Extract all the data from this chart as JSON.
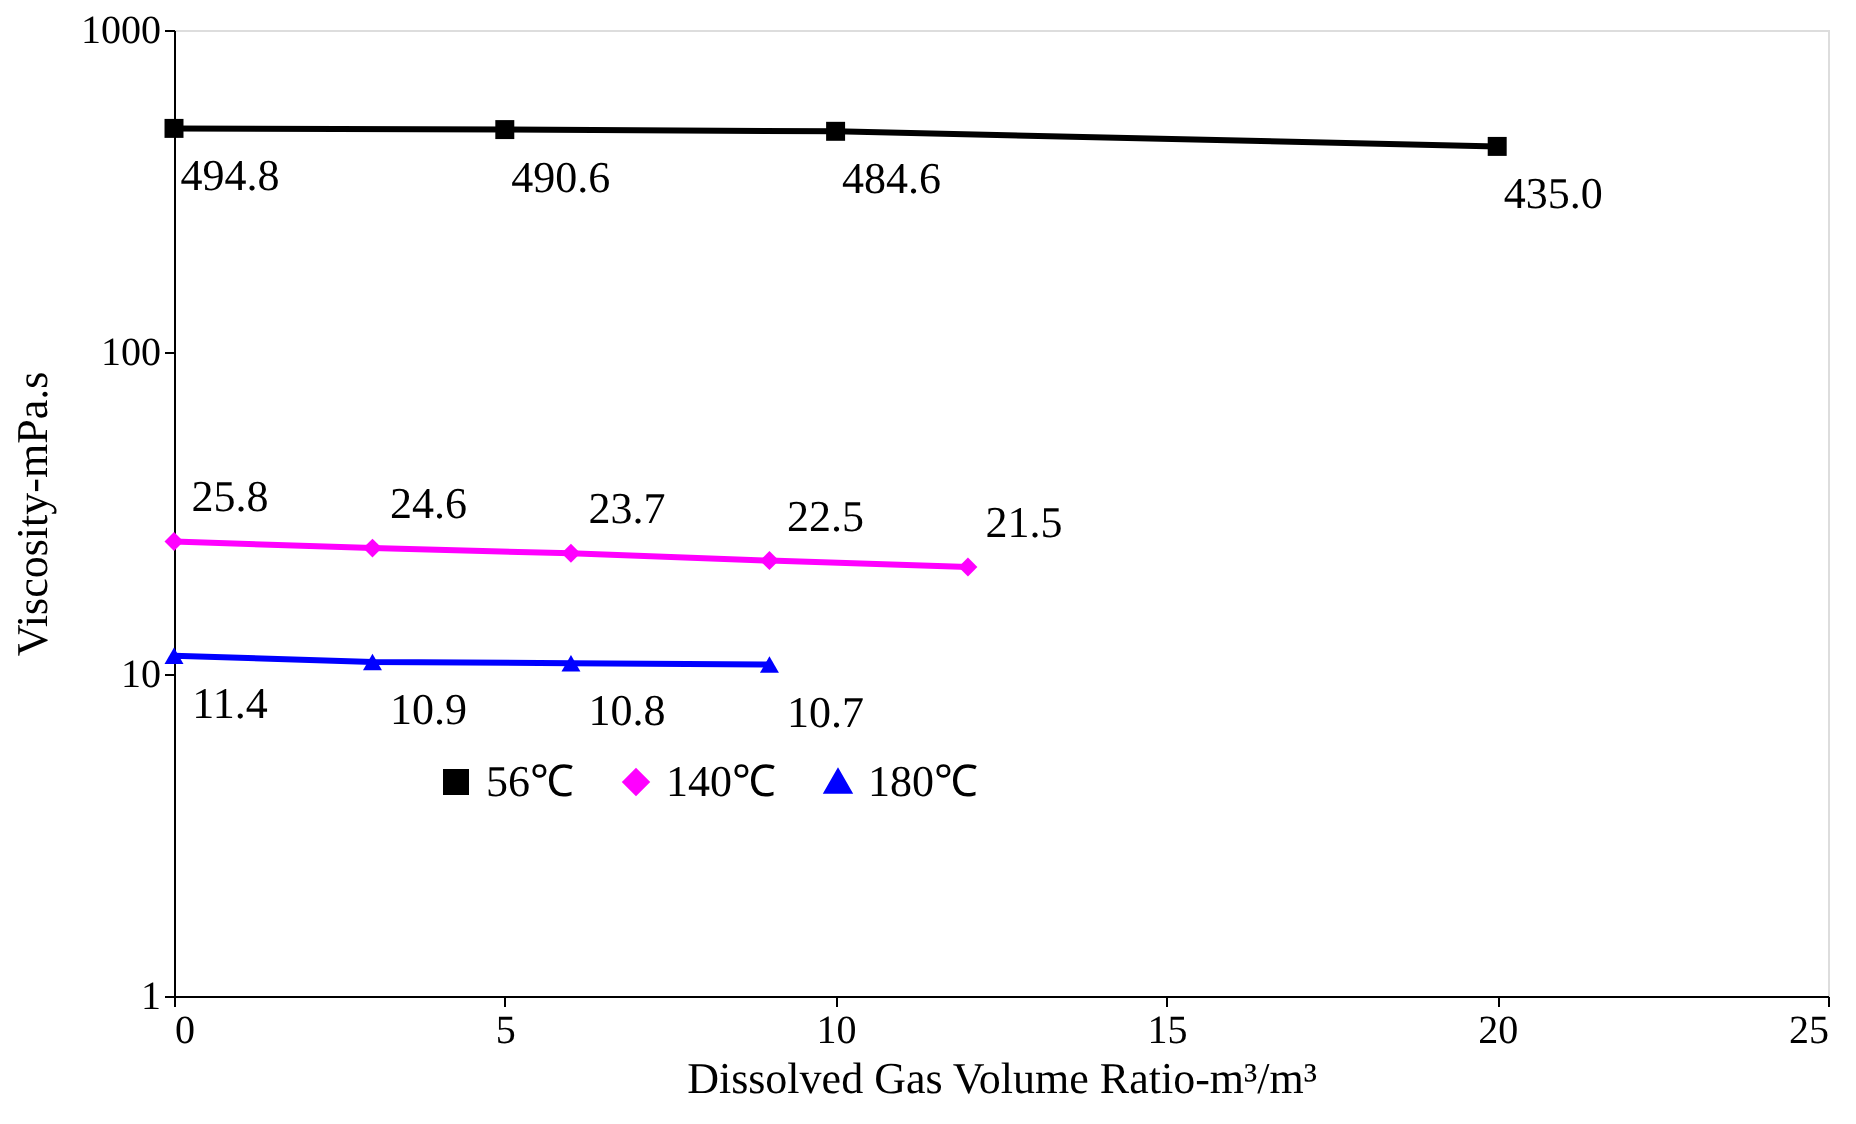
{
  "chart_data": {
    "type": "line",
    "xlabel": "Dissolved Gas Volume Ratio-m³/m³",
    "ylabel": "Viscosity-mPa.s",
    "series": [
      {
        "name": "56℃",
        "color": "#000000",
        "marker": "square",
        "x": [
          0,
          5,
          10,
          20
        ],
        "values": [
          494.8,
          490.6,
          484.6,
          435.0
        ],
        "value_labels": [
          "494.8",
          "490.6",
          "484.6",
          "435.0"
        ]
      },
      {
        "name": "140℃",
        "color": "#ff00ff",
        "marker": "diamond",
        "x": [
          0,
          3,
          6,
          9,
          12
        ],
        "values": [
          25.8,
          24.6,
          23.7,
          22.5,
          21.5
        ],
        "value_labels": [
          "25.8",
          "24.6",
          "23.7",
          "22.5",
          "21.5"
        ]
      },
      {
        "name": "180℃",
        "color": "#0000ff",
        "marker": "triangle",
        "x": [
          0,
          3,
          6,
          9
        ],
        "values": [
          11.4,
          10.9,
          10.8,
          10.7
        ],
        "value_labels": [
          "11.4",
          "10.9",
          "10.8",
          "10.7"
        ]
      }
    ],
    "xlim": [
      0,
      25
    ],
    "xticks": [
      0,
      5,
      10,
      15,
      20,
      25
    ],
    "ylim": [
      1,
      1000
    ],
    "yticks": [
      1,
      10,
      100,
      1000
    ],
    "log": true,
    "grid": false,
    "legend": "bottom",
    "line_style": "solid"
  }
}
